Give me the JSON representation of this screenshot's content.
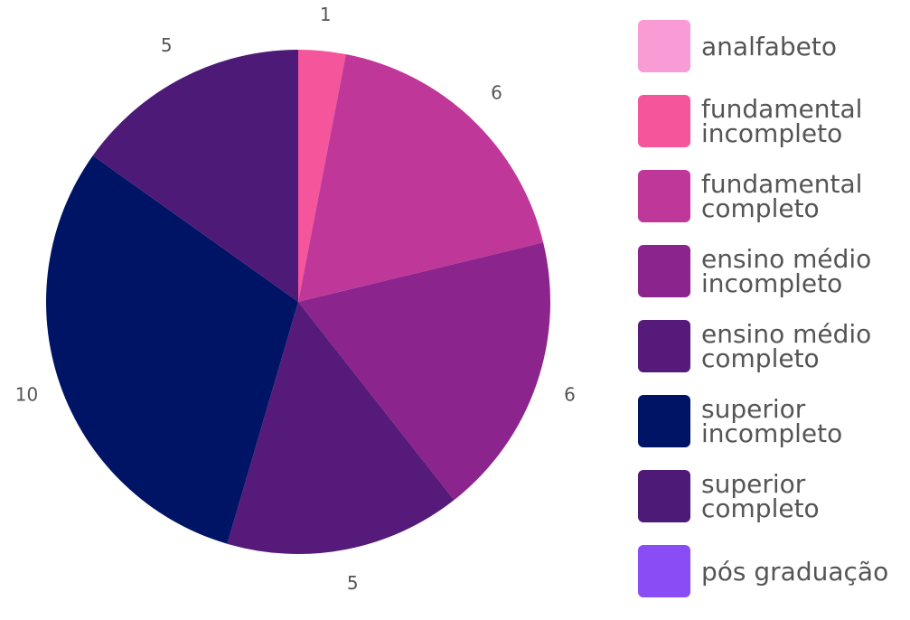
{
  "chart_data": {
    "type": "pie",
    "categories": [
      "analfabeto",
      "fundamental incompleto",
      "fundamental completo",
      "ensino médio incompleto",
      "ensino médio completo",
      "superior incompleto",
      "superior completo",
      "pós graduação"
    ],
    "values": [
      0,
      1,
      6,
      6,
      5,
      10,
      5,
      0
    ],
    "colors": [
      "#f99bd4",
      "#f5559b",
      "#c0379a",
      "#8b248c",
      "#561b7a",
      "#001466",
      "#4e1a78",
      "#8a4cf5"
    ],
    "legend": "right"
  }
}
